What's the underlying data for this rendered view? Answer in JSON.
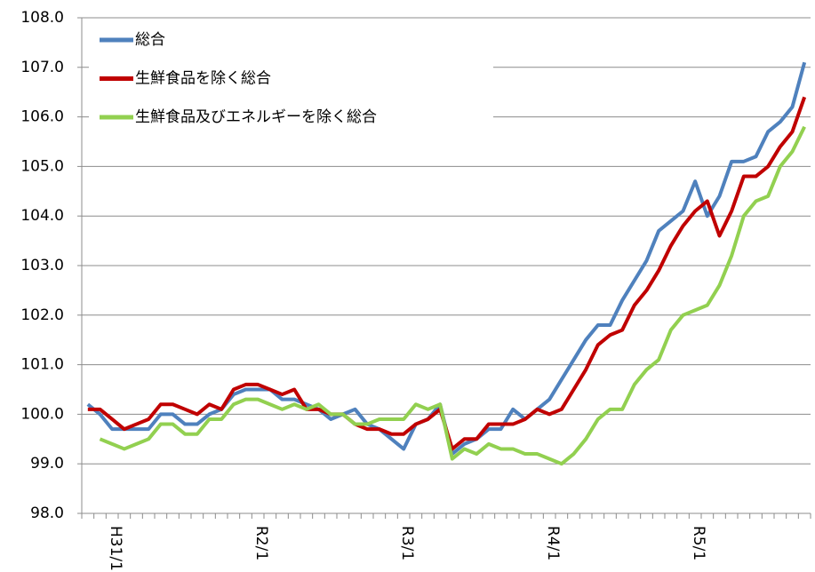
{
  "chart_data": {
    "type": "line",
    "categories": [
      null,
      null,
      "H31/1",
      null,
      null,
      null,
      null,
      null,
      null,
      null,
      null,
      null,
      null,
      null,
      "R2/1",
      null,
      null,
      null,
      null,
      null,
      null,
      null,
      null,
      null,
      null,
      null,
      "R3/1",
      null,
      null,
      null,
      null,
      null,
      null,
      null,
      null,
      null,
      null,
      null,
      "R4/1",
      null,
      null,
      null,
      null,
      null,
      null,
      null,
      null,
      null,
      null,
      null,
      "R5/1",
      null,
      null,
      null,
      null,
      null,
      null,
      null,
      null,
      null
    ],
    "series": [
      {
        "name": "総合",
        "color": "#4f81bd",
        "values": [
          100.2,
          100.0,
          99.7,
          99.7,
          99.7,
          99.7,
          100.0,
          100.0,
          99.8,
          99.8,
          100.0,
          100.1,
          100.4,
          100.5,
          100.5,
          100.5,
          100.3,
          100.3,
          100.2,
          100.1,
          99.9,
          100.0,
          100.1,
          99.8,
          99.7,
          99.5,
          99.3,
          99.8,
          99.9,
          100.2,
          99.2,
          99.4,
          99.5,
          99.7,
          99.7,
          100.1,
          99.9,
          100.1,
          100.3,
          100.7,
          101.1,
          101.5,
          101.8,
          101.8,
          102.3,
          102.7,
          103.1,
          103.7,
          103.9,
          104.1,
          104.7,
          104.0,
          104.4,
          105.1,
          105.1,
          105.2,
          105.7,
          105.9,
          106.2,
          107.1
        ]
      },
      {
        "name": "生鮮食品を除く総合",
        "color": "#c00000",
        "values": [
          100.1,
          100.1,
          99.9,
          99.7,
          99.8,
          99.9,
          100.2,
          100.2,
          100.1,
          100.0,
          100.2,
          100.1,
          100.5,
          100.6,
          100.6,
          100.5,
          100.4,
          100.5,
          100.1,
          100.1,
          100.0,
          100.0,
          99.8,
          99.7,
          99.7,
          99.6,
          99.6,
          99.8,
          99.9,
          100.1,
          99.3,
          99.5,
          99.5,
          99.8,
          99.8,
          99.8,
          99.9,
          100.1,
          100.0,
          100.1,
          100.5,
          100.9,
          101.4,
          101.6,
          101.7,
          102.2,
          102.5,
          102.9,
          103.4,
          103.8,
          104.1,
          104.3,
          103.6,
          104.1,
          104.8,
          104.8,
          105.0,
          105.4,
          105.7,
          106.4
        ]
      },
      {
        "name": "生鮮食品及びエネルギーを除く総合",
        "color": "#92d050",
        "values": [
          null,
          99.5,
          99.4,
          99.3,
          99.4,
          99.5,
          99.8,
          99.8,
          99.6,
          99.6,
          99.9,
          99.9,
          100.2,
          100.3,
          100.3,
          100.2,
          100.1,
          100.2,
          100.1,
          100.2,
          100.0,
          100.0,
          99.8,
          99.8,
          99.9,
          99.9,
          99.9,
          100.2,
          100.1,
          100.2,
          99.1,
          99.3,
          99.2,
          99.4,
          99.3,
          99.3,
          99.2,
          99.2,
          99.1,
          99.0,
          99.2,
          99.5,
          99.9,
          100.1,
          100.1,
          100.6,
          100.9,
          101.1,
          101.7,
          102.0,
          102.1,
          102.2,
          102.6,
          103.2,
          104.0,
          104.3,
          104.4,
          105.0,
          105.3,
          105.8
        ]
      }
    ],
    "ylim": [
      98.0,
      108.0
    ],
    "yticks": [
      {
        "value": 98,
        "label": "98.0"
      },
      {
        "value": 99,
        "label": "99.0"
      },
      {
        "value": 100,
        "label": "100.0"
      },
      {
        "value": 101,
        "label": "101.0"
      },
      {
        "value": 102,
        "label": "102.0"
      },
      {
        "value": 103,
        "label": "103.0"
      },
      {
        "value": 104,
        "label": "104.0"
      },
      {
        "value": 105,
        "label": "105.0"
      },
      {
        "value": 106,
        "label": "106.0"
      },
      {
        "value": 107,
        "label": "107.0"
      },
      {
        "value": 108,
        "label": "108.0"
      }
    ],
    "grid": true,
    "legend": "top-left"
  }
}
